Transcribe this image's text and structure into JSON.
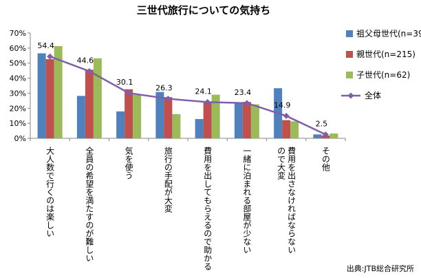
{
  "chart_data": {
    "type": "bar",
    "title": "三世代旅行についての気持ち",
    "categories": [
      "大人数で行くのは楽しい",
      "全員の希望を満たすのが難しい",
      "気を使う",
      "旅行の手配が大変",
      "費用を出してもらえるので助かる",
      "一緒に泊まれる部屋が少ない",
      "費用を出さなければならないので大変",
      "その他"
    ],
    "category_lines": [
      [
        "大人数で行くのは楽しい"
      ],
      [
        "全員の希望を満たすのが難しい"
      ],
      [
        "気を使う"
      ],
      [
        "旅行の手配が大変"
      ],
      [
        "費用を出してもらえるので助かる"
      ],
      [
        "一緒に泊まれる部屋が少ない"
      ],
      [
        "費用を出さなければならない",
        "ので大変"
      ],
      [
        "その他"
      ]
    ],
    "series": [
      {
        "name": "祖父母世代(n=39)",
        "type": "bar",
        "color": "#4f81bd",
        "values": [
          56.5,
          28.2,
          17.9,
          30.8,
          12.8,
          23.1,
          33.3,
          2.6
        ]
      },
      {
        "name": "親世代(n=215)",
        "type": "bar",
        "color": "#c0504d",
        "values": [
          52.6,
          45.6,
          32.6,
          27.4,
          24.2,
          24.2,
          12.1,
          1.9
        ]
      },
      {
        "name": "子世代(n=62)",
        "type": "bar",
        "color": "#9bbb59",
        "values": [
          61.3,
          53.2,
          29.0,
          16.1,
          29.0,
          22.6,
          11.3,
          3.2
        ]
      },
      {
        "name": "全体",
        "type": "line",
        "color": "#7f5fa8",
        "values": [
          54.4,
          44.6,
          30.1,
          26.3,
          24.1,
          23.4,
          14.9,
          2.5
        ]
      }
    ],
    "data_labels": [
      "54.4",
      "44.6",
      "30.1",
      "26.3",
      "24.1",
      "23.4",
      "14.9",
      "2.5"
    ],
    "y_ticks": [
      "0%",
      "10%",
      "20%",
      "30%",
      "40%",
      "50%",
      "60%",
      "70%"
    ],
    "ylim": [
      0,
      70
    ],
    "grid": false,
    "legend_position": "right",
    "source": "出典:JTB総合研究所"
  }
}
